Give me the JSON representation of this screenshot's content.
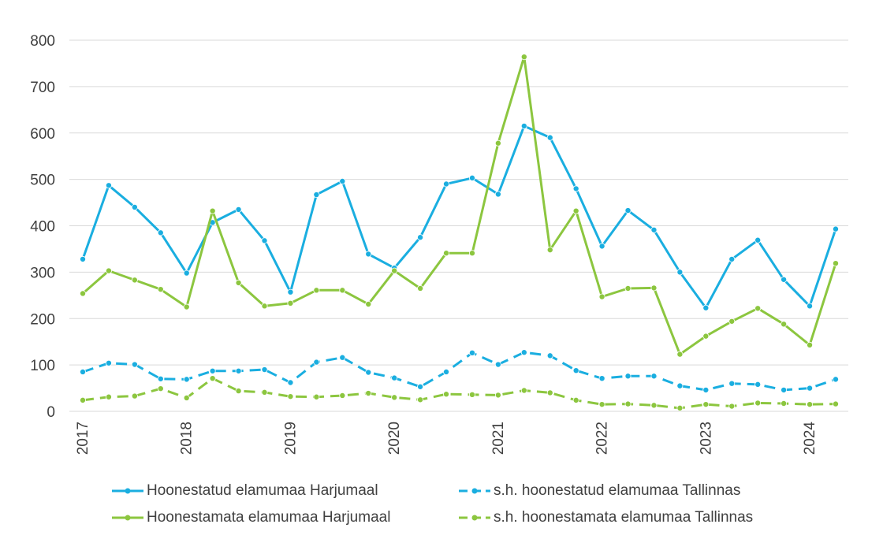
{
  "chart_data": {
    "type": "line",
    "title": "",
    "xlabel": "",
    "ylabel": "",
    "ylim": [
      0,
      800
    ],
    "yticks": [
      0,
      100,
      200,
      300,
      400,
      500,
      600,
      700,
      800
    ],
    "grid": true,
    "legend_position": "bottom",
    "year_labels": [
      "2017",
      "2018",
      "2019",
      "2020",
      "2021",
      "2022",
      "2023",
      "2024"
    ],
    "categories": [
      "2017 Q1",
      "2017 Q2",
      "2017 Q3",
      "2017 Q4",
      "2018 Q1",
      "2018 Q2",
      "2018 Q3",
      "2018 Q4",
      "2019 Q1",
      "2019 Q2",
      "2019 Q3",
      "2019 Q4",
      "2020 Q1",
      "2020 Q2",
      "2020 Q3",
      "2020 Q4",
      "2021 Q1",
      "2021 Q2",
      "2021 Q3",
      "2021 Q4",
      "2022 Q1",
      "2022 Q2",
      "2022 Q3",
      "2022 Q4",
      "2023 Q1",
      "2023 Q2",
      "2023 Q3",
      "2023 Q4",
      "2024 Q1",
      "2024 Q2"
    ],
    "series": [
      {
        "name": "Hoonestatud elamumaa Harjumaal",
        "color": "#1aaee0",
        "dashed": false,
        "values": [
          328,
          487,
          440,
          385,
          298,
          407,
          435,
          368,
          257,
          467,
          496,
          339,
          309,
          375,
          490,
          503,
          468,
          615,
          590,
          480,
          356,
          433,
          391,
          300,
          223,
          328,
          369,
          284,
          227,
          393
        ]
      },
      {
        "name": "s.h. hoonestatud elamumaa Tallinnas",
        "color": "#1aaee0",
        "dashed": true,
        "values": [
          85,
          104,
          101,
          70,
          69,
          87,
          87,
          90,
          62,
          106,
          116,
          84,
          72,
          53,
          85,
          126,
          101,
          127,
          120,
          88,
          71,
          76,
          76,
          55,
          46,
          60,
          58,
          46,
          50,
          69
        ]
      },
      {
        "name": "Hoonestamata elamumaa Harjumaal",
        "color": "#8cc63f",
        "dashed": false,
        "values": [
          254,
          303,
          283,
          263,
          225,
          432,
          277,
          227,
          233,
          261,
          261,
          231,
          303,
          265,
          341,
          341,
          578,
          764,
          348,
          432,
          247,
          265,
          266,
          123,
          162,
          194,
          222,
          188,
          143,
          319
        ]
      },
      {
        "name": "s.h. hoonestamata elamumaa Tallinnas",
        "color": "#8cc63f",
        "dashed": true,
        "values": [
          24,
          31,
          33,
          49,
          29,
          71,
          44,
          41,
          32,
          31,
          34,
          39,
          30,
          25,
          37,
          36,
          35,
          45,
          40,
          24,
          15,
          16,
          13,
          7,
          15,
          11,
          18,
          17,
          15,
          16
        ]
      }
    ]
  }
}
